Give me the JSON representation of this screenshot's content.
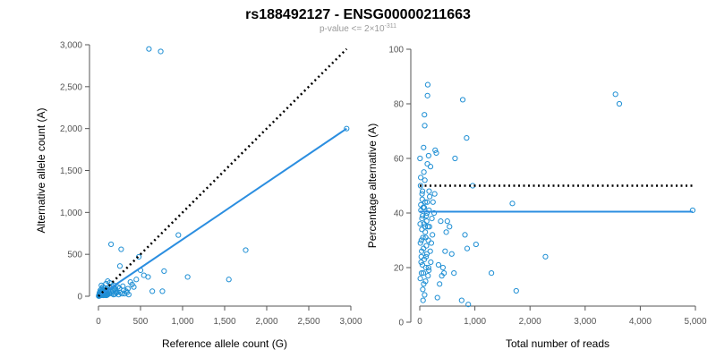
{
  "title": "rs188492127 - ENSG00000211663",
  "subtitle": {
    "prefix": "p-value <= 2",
    "times": "×",
    "base": "10",
    "exponent": "-311"
  },
  "colors": {
    "points": "#1f8fd4",
    "fit_line": "#2b8ee0",
    "reference_line": "#000000",
    "axis": "#555555"
  },
  "chart_data": [
    {
      "type": "scatter",
      "title": "",
      "xlabel": "Reference allele count (G)",
      "ylabel": "Alternative allele count (A)",
      "xlim": [
        0,
        3000
      ],
      "ylim": [
        0,
        3000
      ],
      "xticks": [
        0,
        500,
        1000,
        1500,
        2000,
        2500,
        3000
      ],
      "yticks": [
        0,
        500,
        1000,
        1500,
        2000,
        2500,
        3000
      ],
      "xtick_labels": [
        "0",
        "500",
        "1,000",
        "1,500",
        "2,000",
        "2,500",
        "3,000"
      ],
      "ytick_labels": [
        "0",
        "500",
        "1,000",
        "1,500",
        "2,000",
        "2,500",
        "3,000"
      ],
      "grid": false,
      "legend": "none",
      "reference_line": {
        "style": "dotted",
        "points": [
          [
            0,
            0
          ],
          [
            2950,
            2950
          ]
        ]
      },
      "fit_line": {
        "style": "solid",
        "points": [
          [
            0,
            0
          ],
          [
            2950,
            2000
          ]
        ]
      },
      "points": [
        [
          600,
          2950
        ],
        [
          740,
          2920
        ],
        [
          2950,
          2000
        ],
        [
          1750,
          550
        ],
        [
          1550,
          200
        ],
        [
          950,
          730
        ],
        [
          1060,
          230
        ],
        [
          780,
          300
        ],
        [
          760,
          60
        ],
        [
          640,
          60
        ],
        [
          590,
          230
        ],
        [
          540,
          250
        ],
        [
          500,
          310
        ],
        [
          480,
          470
        ],
        [
          450,
          200
        ],
        [
          420,
          110
        ],
        [
          400,
          140
        ],
        [
          380,
          170
        ],
        [
          350,
          90
        ],
        [
          330,
          60
        ],
        [
          300,
          70
        ],
        [
          280,
          30
        ],
        [
          270,
          560
        ],
        [
          255,
          360
        ],
        [
          230,
          110
        ],
        [
          210,
          40
        ],
        [
          200,
          60
        ],
        [
          190,
          90
        ],
        [
          180,
          20
        ],
        [
          160,
          120
        ],
        [
          150,
          620
        ],
        [
          140,
          100
        ],
        [
          130,
          30
        ],
        [
          120,
          60
        ],
        [
          110,
          180
        ],
        [
          100,
          40
        ],
        [
          95,
          10
        ],
        [
          90,
          150
        ],
        [
          85,
          70
        ],
        [
          80,
          20
        ],
        [
          75,
          50
        ],
        [
          70,
          100
        ],
        [
          65,
          30
        ],
        [
          60,
          10
        ],
        [
          55,
          80
        ],
        [
          50,
          40
        ],
        [
          45,
          20
        ],
        [
          40,
          60
        ],
        [
          35,
          130
        ],
        [
          30,
          10
        ],
        [
          25,
          30
        ],
        [
          20,
          50
        ],
        [
          15,
          20
        ],
        [
          10,
          5
        ],
        [
          8,
          15
        ],
        [
          5,
          10
        ],
        [
          12,
          40
        ],
        [
          18,
          25
        ],
        [
          22,
          70
        ],
        [
          28,
          35
        ],
        [
          33,
          15
        ],
        [
          38,
          90
        ],
        [
          42,
          45
        ],
        [
          48,
          25
        ],
        [
          52,
          110
        ],
        [
          58,
          55
        ],
        [
          62,
          35
        ],
        [
          68,
          20
        ],
        [
          72,
          75
        ],
        [
          78,
          40
        ],
        [
          88,
          30
        ],
        [
          98,
          90
        ],
        [
          105,
          15
        ],
        [
          115,
          70
        ],
        [
          125,
          45
        ],
        [
          135,
          160
        ],
        [
          145,
          55
        ],
        [
          155,
          35
        ],
        [
          170,
          70
        ],
        [
          185,
          130
        ],
        [
          195,
          25
        ],
        [
          205,
          85
        ],
        [
          220,
          50
        ],
        [
          240,
          20
        ],
        [
          250,
          95
        ],
        [
          260,
          45
        ],
        [
          290,
          120
        ],
        [
          310,
          30
        ],
        [
          340,
          45
        ],
        [
          360,
          20
        ],
        [
          20,
          10
        ],
        [
          25,
          15
        ],
        [
          30,
          20
        ],
        [
          14,
          8
        ],
        [
          9,
          3
        ],
        [
          6,
          6
        ],
        [
          3,
          2
        ],
        [
          44,
          12
        ],
        [
          66,
          18
        ],
        [
          82,
          12
        ],
        [
          92,
          55
        ],
        [
          102,
          25
        ]
      ]
    },
    {
      "type": "scatter",
      "title": "",
      "xlabel": "Total number of reads",
      "ylabel": "Percentage alternative (A)",
      "xlim": [
        0,
        5000
      ],
      "ylim": [
        0,
        100
      ],
      "xticks": [
        0,
        1000,
        2000,
        3000,
        4000,
        5000
      ],
      "yticks": [
        0,
        20,
        40,
        60,
        80,
        100
      ],
      "xtick_labels": [
        "0",
        "1,000",
        "2,000",
        "3,000",
        "4,000",
        "5,000"
      ],
      "ytick_labels": [
        "0",
        "20",
        "40",
        "60",
        "80",
        "100"
      ],
      "grid": false,
      "legend": "none",
      "reference_line": {
        "style": "dotted",
        "points": [
          [
            0,
            50
          ],
          [
            4950,
            50
          ]
        ]
      },
      "fit_line": {
        "style": "solid",
        "points": [
          [
            0,
            40.5
          ],
          [
            4950,
            40.5
          ]
        ]
      },
      "points": [
        [
          3550,
          83.5
        ],
        [
          3620,
          80
        ],
        [
          4950,
          41
        ],
        [
          2280,
          24
        ],
        [
          1680,
          43.5
        ],
        [
          1750,
          11.5
        ],
        [
          1300,
          18
        ],
        [
          1020,
          28.5
        ],
        [
          960,
          50
        ],
        [
          850,
          67.5
        ],
        [
          780,
          81.5
        ],
        [
          820,
          32
        ],
        [
          860,
          27
        ],
        [
          880,
          6.5
        ],
        [
          760,
          8
        ],
        [
          640,
          60
        ],
        [
          620,
          18
        ],
        [
          580,
          25
        ],
        [
          540,
          35
        ],
        [
          500,
          37
        ],
        [
          480,
          33
        ],
        [
          460,
          26
        ],
        [
          440,
          18
        ],
        [
          420,
          20
        ],
        [
          400,
          17
        ],
        [
          380,
          37
        ],
        [
          360,
          14
        ],
        [
          340,
          21
        ],
        [
          320,
          9
        ],
        [
          300,
          62
        ],
        [
          280,
          63
        ],
        [
          270,
          47
        ],
        [
          260,
          40
        ],
        [
          240,
          44
        ],
        [
          230,
          32
        ],
        [
          220,
          38
        ],
        [
          210,
          29
        ],
        [
          200,
          22
        ],
        [
          195,
          57
        ],
        [
          190,
          26
        ],
        [
          180,
          46
        ],
        [
          175,
          35
        ],
        [
          170,
          48
        ],
        [
          165,
          19
        ],
        [
          160,
          61
        ],
        [
          155,
          30
        ],
        [
          150,
          17
        ],
        [
          145,
          87
        ],
        [
          140,
          83
        ],
        [
          135,
          44
        ],
        [
          130,
          40
        ],
        [
          125,
          37
        ],
        [
          120,
          28
        ],
        [
          115,
          24
        ],
        [
          110,
          20
        ],
        [
          105,
          15
        ],
        [
          100,
          33
        ],
        [
          95,
          35
        ],
        [
          90,
          72
        ],
        [
          85,
          76
        ],
        [
          80,
          42
        ],
        [
          75,
          55
        ],
        [
          70,
          64
        ],
        [
          65,
          18
        ],
        [
          60,
          8
        ],
        [
          55,
          12
        ],
        [
          50,
          48
        ],
        [
          45,
          45
        ],
        [
          40,
          38
        ],
        [
          35,
          26
        ],
        [
          30,
          30
        ],
        [
          25,
          22
        ],
        [
          20,
          43
        ],
        [
          15,
          50
        ],
        [
          10,
          16
        ],
        [
          5,
          60
        ],
        [
          8,
          36
        ],
        [
          12,
          29
        ],
        [
          18,
          53
        ],
        [
          22,
          41
        ],
        [
          28,
          24
        ],
        [
          32,
          18
        ],
        [
          38,
          34
        ],
        [
          42,
          47
        ],
        [
          48,
          21
        ],
        [
          52,
          39
        ],
        [
          58,
          31
        ],
        [
          62,
          42
        ],
        [
          68,
          27
        ],
        [
          72,
          14
        ],
        [
          78,
          36
        ],
        [
          82,
          23
        ],
        [
          88,
          10
        ],
        [
          92,
          52
        ],
        [
          98,
          44
        ],
        [
          108,
          31
        ],
        [
          118,
          39
        ],
        [
          128,
          25
        ],
        [
          138,
          58
        ],
        [
          148,
          35
        ],
        [
          158,
          20
        ],
        [
          168,
          41
        ]
      ]
    }
  ]
}
